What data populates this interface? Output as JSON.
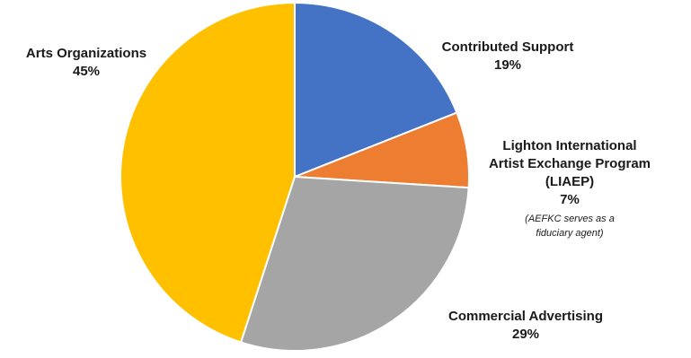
{
  "chart_data": {
    "type": "pie",
    "title": "",
    "slices": [
      {
        "key": "contributed",
        "label_lines": [
          "Contributed Support"
        ],
        "percent_label": "19%",
        "value": 19,
        "color": "#4472C4"
      },
      {
        "key": "liaep",
        "label_lines": [
          "Lighton International",
          "Artist Exchange Program",
          "(LIAEP)"
        ],
        "percent_label": "7%",
        "value": 7,
        "color": "#ED7D31",
        "note_lines": [
          "(AEFKC serves as a",
          "fiduciary agent)"
        ]
      },
      {
        "key": "commercial",
        "label_lines": [
          "Commercial Advertising"
        ],
        "percent_label": "29%",
        "value": 29,
        "color": "#A5A5A5"
      },
      {
        "key": "arts",
        "label_lines": [
          "Arts Organizations"
        ],
        "percent_label": "45%",
        "value": 45,
        "color": "#FFC000"
      }
    ],
    "start_angle": "12 o'clock",
    "direction": "clockwise",
    "slice_border_color": "#ffffff"
  }
}
